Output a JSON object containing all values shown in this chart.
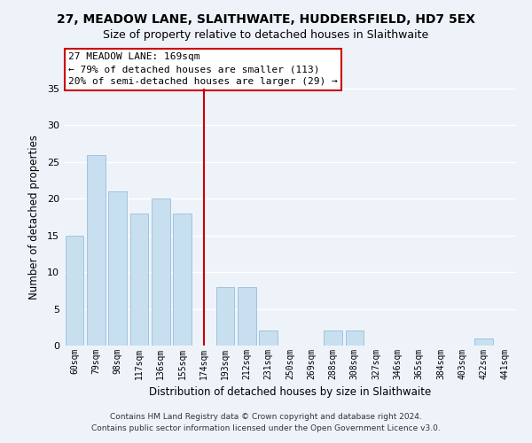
{
  "title": "27, MEADOW LANE, SLAITHWAITE, HUDDERSFIELD, HD7 5EX",
  "subtitle": "Size of property relative to detached houses in Slaithwaite",
  "xlabel": "Distribution of detached houses by size in Slaithwaite",
  "ylabel": "Number of detached properties",
  "bar_color": "#c8dff0",
  "bar_edge_color": "#a0c4e0",
  "background_color": "#eef3fa",
  "grid_color": "white",
  "categories": [
    "60sqm",
    "79sqm",
    "98sqm",
    "117sqm",
    "136sqm",
    "155sqm",
    "174sqm",
    "193sqm",
    "212sqm",
    "231sqm",
    "250sqm",
    "269sqm",
    "288sqm",
    "308sqm",
    "327sqm",
    "346sqm",
    "365sqm",
    "384sqm",
    "403sqm",
    "422sqm",
    "441sqm"
  ],
  "values": [
    15,
    26,
    21,
    18,
    20,
    18,
    0,
    8,
    8,
    2,
    0,
    0,
    2,
    2,
    0,
    0,
    0,
    0,
    0,
    1,
    0
  ],
  "ylim": [
    0,
    35
  ],
  "yticks": [
    0,
    5,
    10,
    15,
    20,
    25,
    30,
    35
  ],
  "property_line_x": 6.0,
  "property_line_label": "27 MEADOW LANE: 169sqm",
  "annotation_line1": "← 79% of detached houses are smaller (113)",
  "annotation_line2": "20% of semi-detached houses are larger (29) →",
  "footer_line1": "Contains HM Land Registry data © Crown copyright and database right 2024.",
  "footer_line2": "Contains public sector information licensed under the Open Government Licence v3.0."
}
